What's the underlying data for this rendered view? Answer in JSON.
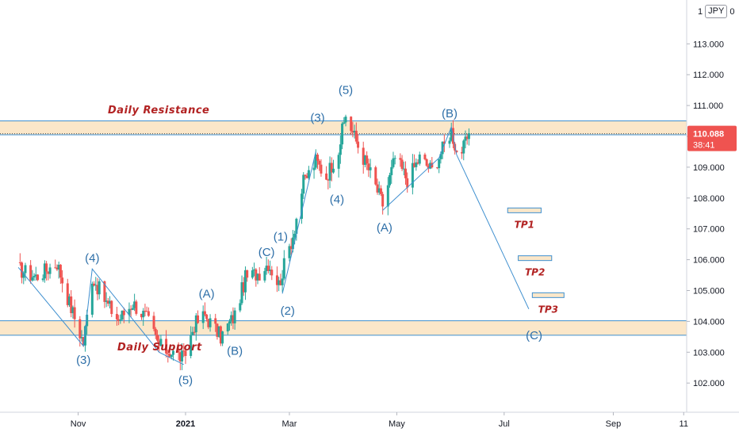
{
  "symbol": {
    "left": "1",
    "box": "JPY",
    "right": "0"
  },
  "colors": {
    "zone_fill": "#fbe7c9",
    "zone_line": "#3e8fcf",
    "wave_line": "#3e8fcf",
    "wave_label": "#2e6fa8",
    "annotation": "#b22222",
    "up_candle": "#26a69a",
    "down_candle": "#ef5350",
    "price_badge": "#ef5350"
  },
  "price": {
    "value": "110.088",
    "countdown": "38:41",
    "last": 110.088
  },
  "chart_data": {
    "type": "candlestick",
    "ylim": [
      101.0,
      114.5
    ],
    "y_ticks": [
      "102.000",
      "103.000",
      "104.000",
      "105.000",
      "106.000",
      "107.000",
      "108.000",
      "109.000",
      "110.000",
      "111.000",
      "112.000",
      "113.000"
    ],
    "x_ticks": [
      {
        "label": "Nov",
        "date": "2020-11-01"
      },
      {
        "label": "2021",
        "date": "2021-01-01"
      },
      {
        "label": "Mar",
        "date": "2021-03-01"
      },
      {
        "label": "May",
        "date": "2021-05-01"
      },
      {
        "label": "Jul",
        "date": "2021-07-01"
      },
      {
        "label": "Sep",
        "date": "2021-09-01"
      },
      {
        "label": "11",
        "date": "2021-10-11"
      }
    ],
    "zones": [
      {
        "name": "Daily Resistance",
        "low": 110.05,
        "high": 110.5
      },
      {
        "name": "Daily Support",
        "low": 103.55,
        "high": 104.02
      }
    ],
    "wave_path_1": [
      {
        "date": "2020-09-28",
        "price": 105.75
      },
      {
        "date": "2020-11-04",
        "price": 103.2
      },
      {
        "date": "2020-11-09",
        "price": 105.7
      },
      {
        "date": "2020-12-17",
        "price": 103.0
      },
      {
        "date": "2020-12-31",
        "price": 102.6
      }
    ],
    "wave_path_2": [
      {
        "date": "2021-02-25",
        "price": 104.9
      },
      {
        "date": "2021-03-16",
        "price": 109.5
      }
    ],
    "wave_path_3": [
      {
        "date": "2021-04-23",
        "price": 107.6
      },
      {
        "date": "2021-05-25",
        "price": 109.3
      },
      {
        "date": "2021-06-01",
        "price": 110.3
      },
      {
        "date": "2021-06-04",
        "price": 109.4
      }
    ],
    "projection": [
      {
        "date": "2021-06-04",
        "price": 109.4
      },
      {
        "date": "2021-07-15",
        "price": 104.4
      }
    ],
    "targets": [
      {
        "label": "TP1",
        "start": "2021-07-03",
        "end": "2021-07-22",
        "price": 107.6
      },
      {
        "label": "TP2",
        "start": "2021-07-09",
        "end": "2021-07-28",
        "price": 106.05
      },
      {
        "label": "TP3",
        "start": "2021-07-17",
        "end": "2021-08-04",
        "price": 104.85
      }
    ],
    "wave_labels": [
      {
        "text": "(3)",
        "date": "2020-11-04",
        "price": 102.75
      },
      {
        "text": "(4)",
        "date": "2020-11-09",
        "price": 106.05
      },
      {
        "text": "(5)",
        "date": "2021-01-01",
        "price": 102.1
      },
      {
        "text": "(A)",
        "date": "2021-01-13",
        "price": 104.9
      },
      {
        "text": "(B)",
        "date": "2021-01-29",
        "price": 103.05
      },
      {
        "text": "(C)",
        "date": "2021-02-16",
        "price": 106.25
      },
      {
        "text": "(1)",
        "date": "2021-02-24",
        "price": 106.75
      },
      {
        "text": "(2)",
        "date": "2021-02-28",
        "price": 104.35
      },
      {
        "text": "(3)",
        "date": "2021-03-17",
        "price": 110.6
      },
      {
        "text": "(4)",
        "date": "2021-03-28",
        "price": 107.95
      },
      {
        "text": "(5)",
        "date": "2021-04-02",
        "price": 111.5
      },
      {
        "text": "(A)",
        "date": "2021-04-24",
        "price": 107.05
      },
      {
        "text": "(B)",
        "date": "2021-05-31",
        "price": 110.75
      },
      {
        "text": "(C)",
        "date": "2021-07-18",
        "price": 103.55
      }
    ],
    "price_keypoints": [
      {
        "date": "2020-09-28",
        "price": 105.7
      },
      {
        "date": "2020-10-08",
        "price": 105.45
      },
      {
        "date": "2020-10-20",
        "price": 105.9
      },
      {
        "date": "2020-10-27",
        "price": 104.6
      },
      {
        "date": "2020-11-04",
        "price": 103.3
      },
      {
        "date": "2020-11-09",
        "price": 105.45
      },
      {
        "date": "2020-11-17",
        "price": 104.6
      },
      {
        "date": "2020-11-24",
        "price": 104.05
      },
      {
        "date": "2020-12-02",
        "price": 104.6
      },
      {
        "date": "2020-12-10",
        "price": 104.1
      },
      {
        "date": "2020-12-17",
        "price": 103.2
      },
      {
        "date": "2020-12-31",
        "price": 102.8
      },
      {
        "date": "2021-01-06",
        "price": 103.9
      },
      {
        "date": "2021-01-12",
        "price": 104.2
      },
      {
        "date": "2021-01-21",
        "price": 103.5
      },
      {
        "date": "2021-01-29",
        "price": 104.2
      },
      {
        "date": "2021-02-04",
        "price": 105.4
      },
      {
        "date": "2021-02-12",
        "price": 105.6
      },
      {
        "date": "2021-02-17",
        "price": 105.9
      },
      {
        "date": "2021-02-23",
        "price": 105.2
      },
      {
        "date": "2021-03-03",
        "price": 106.8
      },
      {
        "date": "2021-03-09",
        "price": 108.5
      },
      {
        "date": "2021-03-16",
        "price": 109.2
      },
      {
        "date": "2021-03-22",
        "price": 108.7
      },
      {
        "date": "2021-03-29",
        "price": 109.6
      },
      {
        "date": "2021-04-02",
        "price": 110.7
      },
      {
        "date": "2021-04-09",
        "price": 109.7
      },
      {
        "date": "2021-04-16",
        "price": 108.8
      },
      {
        "date": "2021-04-23",
        "price": 107.8
      },
      {
        "date": "2021-04-30",
        "price": 109.3
      },
      {
        "date": "2021-05-07",
        "price": 108.6
      },
      {
        "date": "2021-05-14",
        "price": 109.3
      },
      {
        "date": "2021-05-21",
        "price": 108.9
      },
      {
        "date": "2021-05-28",
        "price": 109.7
      },
      {
        "date": "2021-06-01",
        "price": 110.2
      },
      {
        "date": "2021-06-04",
        "price": 109.5
      },
      {
        "date": "2021-06-08",
        "price": 109.6
      },
      {
        "date": "2021-06-11",
        "price": 110.1
      }
    ]
  }
}
